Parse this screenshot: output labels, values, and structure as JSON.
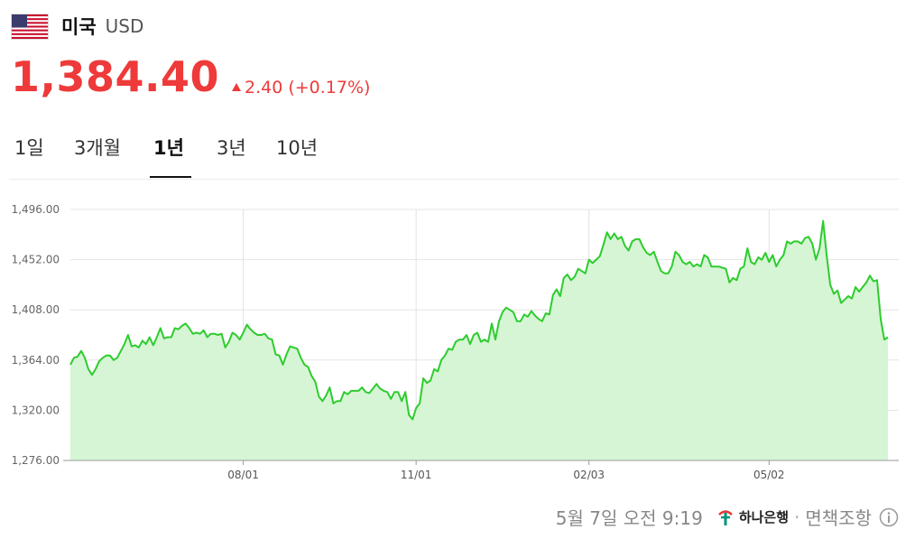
{
  "header": {
    "country": "미국",
    "currency": "USD",
    "flag_icon": "us-flag-icon"
  },
  "quote": {
    "price": "1,384.40",
    "change": "2.40 (+0.17%)",
    "direction": "up",
    "color": "#ee3a3a"
  },
  "tabs": [
    {
      "label": "1일",
      "active": false
    },
    {
      "label": "3개월",
      "active": false
    },
    {
      "label": "1년",
      "active": true
    },
    {
      "label": "3년",
      "active": false
    },
    {
      "label": "10년",
      "active": false
    }
  ],
  "footer": {
    "timestamp": "5월 7일 오전 9:19",
    "bank": "하나은행",
    "separator": "·",
    "disclaimer": "면책조항",
    "info_icon": "info-icon"
  },
  "chart_data": {
    "type": "area",
    "line_color": "#2ecc2e",
    "fill_color": "#d5f5d5",
    "ylim": [
      1276,
      1496
    ],
    "yticks": [
      1276,
      1320,
      1364,
      1408,
      1452,
      1496
    ],
    "ytick_labels": [
      "1,276.00",
      "1,320.00",
      "1,364.00",
      "1,408.00",
      "1,452.00",
      "1,496.00"
    ],
    "xtick_labels": [
      "08/01",
      "11/01",
      "02/03",
      "05/02"
    ],
    "xtick_index": [
      48,
      96,
      144,
      194
    ],
    "grid": true,
    "values": [
      1360,
      1366,
      1367,
      1372,
      1366,
      1356,
      1351,
      1356,
      1363,
      1366,
      1368,
      1368,
      1364,
      1366,
      1372,
      1378,
      1386,
      1376,
      1377,
      1375,
      1381,
      1378,
      1384,
      1377,
      1384,
      1392,
      1383,
      1384,
      1384,
      1392,
      1391,
      1394,
      1396,
      1392,
      1387,
      1388,
      1387,
      1390,
      1384,
      1387,
      1387,
      1386,
      1387,
      1375,
      1380,
      1388,
      1386,
      1382,
      1388,
      1395,
      1391,
      1388,
      1386,
      1386,
      1387,
      1383,
      1382,
      1369,
      1368,
      1360,
      1369,
      1376,
      1375,
      1374,
      1366,
      1360,
      1358,
      1350,
      1345,
      1332,
      1328,
      1333,
      1340,
      1326,
      1328,
      1328,
      1336,
      1334,
      1337,
      1337,
      1337,
      1340,
      1336,
      1335,
      1339,
      1343,
      1339,
      1337,
      1336,
      1330,
      1336,
      1336,
      1328,
      1336,
      1316,
      1312,
      1322,
      1326,
      1348,
      1344,
      1346,
      1356,
      1354,
      1364,
      1368,
      1374,
      1373,
      1380,
      1382,
      1382,
      1386,
      1378,
      1386,
      1388,
      1380,
      1382,
      1380,
      1396,
      1382,
      1398,
      1406,
      1410,
      1408,
      1406,
      1398,
      1398,
      1404,
      1402,
      1407,
      1403,
      1400,
      1398,
      1405,
      1404,
      1421,
      1426,
      1420,
      1436,
      1439,
      1434,
      1437,
      1444,
      1442,
      1440,
      1452,
      1449,
      1452,
      1455,
      1465,
      1476,
      1470,
      1475,
      1470,
      1472,
      1464,
      1460,
      1468,
      1470,
      1470,
      1463,
      1458,
      1456,
      1459,
      1450,
      1442,
      1440,
      1440,
      1446,
      1459,
      1456,
      1450,
      1448,
      1450,
      1446,
      1448,
      1446,
      1456,
      1454,
      1446,
      1446,
      1446,
      1445,
      1444,
      1432,
      1436,
      1434,
      1444,
      1446,
      1462,
      1450,
      1448,
      1454,
      1452,
      1458,
      1450,
      1456,
      1446,
      1452,
      1456,
      1468,
      1466,
      1468,
      1468,
      1466,
      1471,
      1472,
      1466,
      1452,
      1462,
      1486,
      1456,
      1430,
      1422,
      1425,
      1414,
      1417,
      1420,
      1418,
      1428,
      1424,
      1428,
      1432,
      1438,
      1433,
      1434,
      1400,
      1382,
      1384
    ]
  }
}
